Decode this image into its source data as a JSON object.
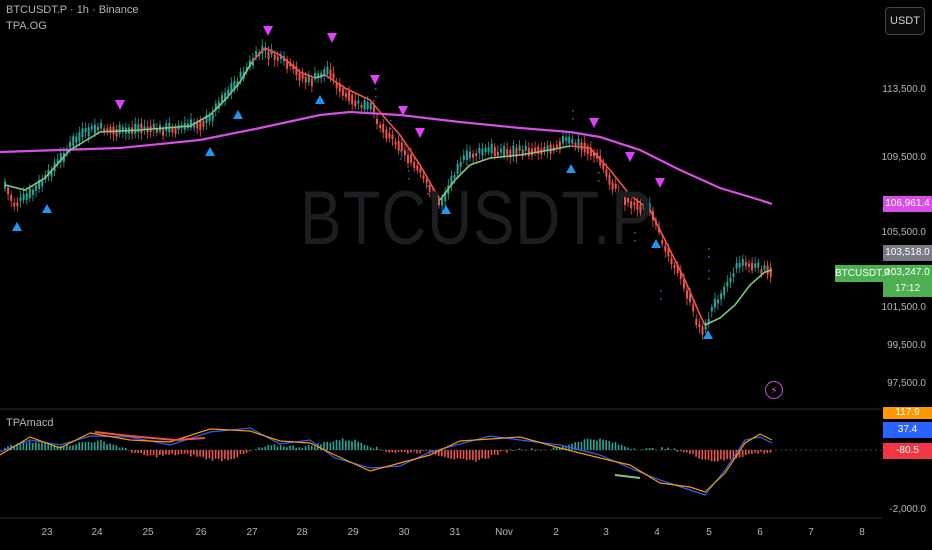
{
  "header": {
    "symbol_line": "BTCUSDT.P · 1h · Binance",
    "indicator_main": "TPA.OG",
    "indicator_sub": "TPAmacd"
  },
  "toolbar": {
    "currency_label": "USDT"
  },
  "watermark": "BTCUSDT.P",
  "price_axis": {
    "ticks": [
      "113,500.0",
      "109,500.0",
      "105,500.0",
      "101,500.0",
      "99,500.0",
      "97,500.0"
    ],
    "tags": {
      "ma_value": "106,961.4",
      "high_value": "103,518.0",
      "last_price": "103,247.0",
      "countdown": "17:12",
      "symbol": "BTCUSDT.P"
    }
  },
  "macd_axis": {
    "ticks": [
      "-2,000.0"
    ],
    "tags": {
      "macd_top": "117.9",
      "macd_line": "37.4",
      "macd_hist": "-80.5"
    }
  },
  "time_axis": {
    "labels": [
      "23",
      "24",
      "25",
      "26",
      "27",
      "28",
      "29",
      "30",
      "31",
      "Nov",
      "2",
      "3",
      "4",
      "5",
      "6",
      "7",
      "8"
    ]
  },
  "colors": {
    "up_candle": "#26a69a",
    "down_candle": "#ef5350",
    "ma_line": "#d84ee6",
    "trend_bull": "#81c784",
    "trend_bear": "#ef5350",
    "signal_up": "#2196f3",
    "signal_down": "#e040fb",
    "macd_line": "#2962ff",
    "signal_line": "#ff9800"
  },
  "icons": {
    "alert": "lightning-icon"
  }
}
